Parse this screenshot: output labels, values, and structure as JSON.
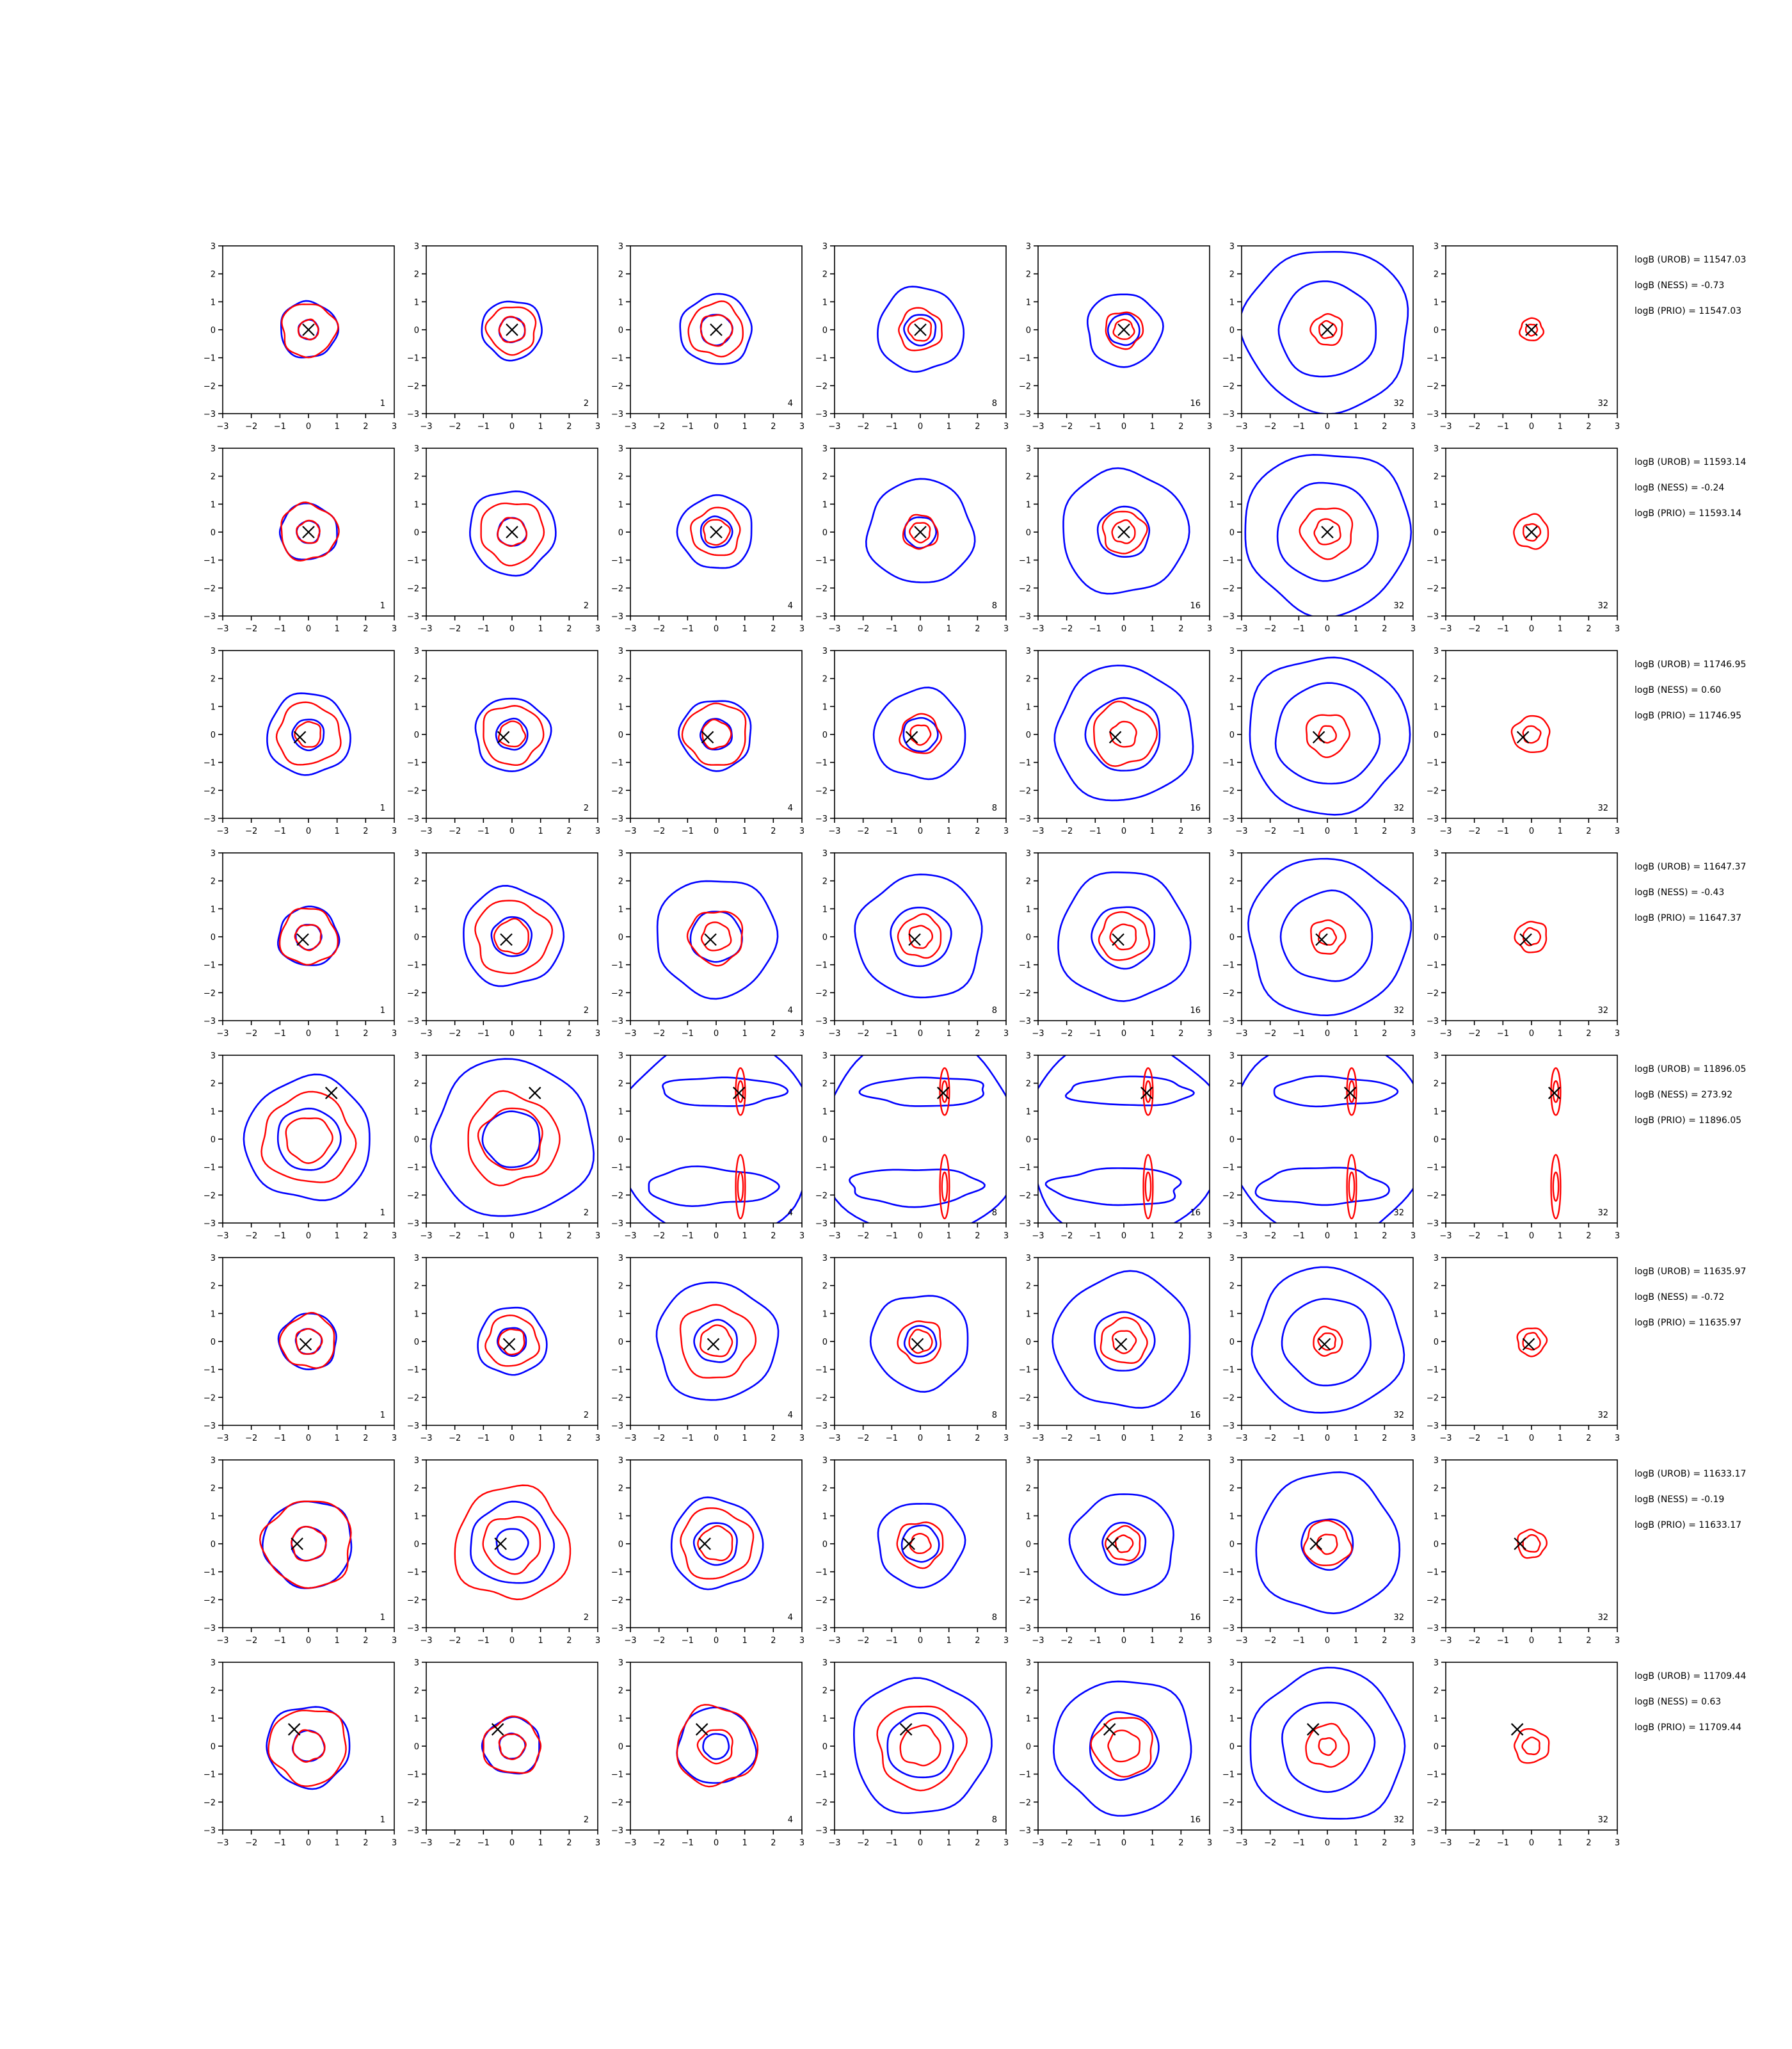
{
  "chart_data": {
    "type": "contour-grid",
    "rows": 8,
    "cols": 7,
    "xlim": [
      -3,
      3
    ],
    "ylim": [
      -3,
      3
    ],
    "ticks": [
      "−3",
      "−2",
      "−1",
      "0",
      "1",
      "2",
      "3"
    ],
    "tick_values": [
      -3,
      -2,
      -1,
      0,
      1,
      2,
      3
    ],
    "panel_labels": [
      "1",
      "2",
      "4",
      "8",
      "16",
      "32",
      "32"
    ],
    "colors": {
      "contour_outer": "#0000ff",
      "contour_inner": "#ff0000",
      "marker": "#000000",
      "axis": "#000000"
    },
    "grid": false,
    "rows_data": [
      {
        "marker": [
          0.0,
          0.0
        ],
        "annotations": [
          "logB (UROB) = 11547.03",
          "logB (NESS) = -0.73",
          "logB (PRIO) = 11547.03"
        ],
        "blue_radii": [
          [
            1.0,
            0.35
          ],
          [
            1.05,
            0.45
          ],
          [
            1.25,
            0.55
          ],
          [
            1.5,
            0.55
          ],
          [
            1.3,
            0.55
          ],
          [
            2.9,
            1.7
          ],
          [
            0,
            0
          ]
        ],
        "red_radii": [
          [
            0.95,
            0.35
          ],
          [
            0.85,
            0.45
          ],
          [
            0.95,
            0.55
          ],
          [
            0.75,
            0.4
          ],
          [
            0.65,
            0.35
          ],
          [
            0.55,
            0.3
          ],
          [
            0.4,
            0.2
          ]
        ]
      },
      {
        "marker": [
          0.0,
          0.0
        ],
        "annotations": [
          "logB (UROB) = 11593.14",
          "logB (NESS) = -0.24",
          "logB (PRIO) = 11593.14"
        ],
        "blue_radii": [
          [
            1.0,
            0.4
          ],
          [
            1.5,
            0.5
          ],
          [
            1.3,
            0.55
          ],
          [
            1.85,
            0.55
          ],
          [
            2.2,
            0.9
          ],
          [
            2.9,
            1.75
          ],
          [
            0,
            0
          ]
        ],
        "red_radii": [
          [
            1.0,
            0.4
          ],
          [
            1.1,
            0.5
          ],
          [
            0.85,
            0.45
          ],
          [
            0.6,
            0.35
          ],
          [
            0.75,
            0.4
          ],
          [
            0.9,
            0.45
          ],
          [
            0.6,
            0.3
          ]
        ]
      },
      {
        "marker": [
          -0.3,
          -0.1
        ],
        "annotations": [
          "logB (UROB) = 11746.95",
          "logB (NESS) = 0.60",
          "logB (PRIO) = 11746.95"
        ],
        "blue_radii": [
          [
            1.45,
            0.55
          ],
          [
            1.3,
            0.55
          ],
          [
            1.25,
            0.55
          ],
          [
            1.6,
            0.6
          ],
          [
            2.4,
            1.3
          ],
          [
            2.8,
            1.8
          ],
          [
            0,
            0
          ]
        ],
        "red_radii": [
          [
            1.1,
            0.45
          ],
          [
            1.05,
            0.45
          ],
          [
            1.1,
            0.5
          ],
          [
            0.7,
            0.35
          ],
          [
            1.1,
            0.45
          ],
          [
            0.75,
            0.3
          ],
          [
            0.65,
            0.3
          ]
        ]
      },
      {
        "marker": [
          -0.2,
          -0.1
        ],
        "annotations": [
          "logB (UROB) = 11647.37",
          "logB (NESS) = -0.43",
          "logB (PRIO) = 11647.37"
        ],
        "blue_radii": [
          [
            1.05,
            0.45
          ],
          [
            1.75,
            0.7
          ],
          [
            2.1,
            0.9
          ],
          [
            2.2,
            1.05
          ],
          [
            2.3,
            1.1
          ],
          [
            2.8,
            1.6
          ],
          [
            0,
            0
          ]
        ],
        "red_radii": [
          [
            1.0,
            0.45
          ],
          [
            1.3,
            0.6
          ],
          [
            0.95,
            0.5
          ],
          [
            0.75,
            0.4
          ],
          [
            0.85,
            0.45
          ],
          [
            0.6,
            0.3
          ],
          [
            0.55,
            0.3
          ]
        ]
      },
      {
        "marker": [
          0.8,
          1.65
        ],
        "annotations": [
          "logB (UROB) = 11896.05",
          "logB (NESS) = 273.92",
          "logB (PRIO) = 11896.05"
        ],
        "blue_radii": [
          [
            2.2,
            1.1
          ],
          [
            2.8,
            1.0
          ],
          [
            0,
            0
          ],
          [
            0,
            0
          ],
          [
            0,
            0
          ],
          [
            0,
            0
          ],
          [
            0,
            0
          ]
        ],
        "red_radii": [
          [
            1.6,
            0.8
          ],
          [
            1.6,
            1.1
          ],
          [
            0,
            0
          ],
          [
            0,
            0
          ],
          [
            0,
            0
          ],
          [
            0,
            0
          ],
          [
            0,
            0
          ]
        ]
      },
      {
        "marker": [
          -0.1,
          -0.1
        ],
        "annotations": [
          "logB (UROB) = 11635.97",
          "logB (NESS) = -0.72",
          "logB (PRIO) = 11635.97"
        ],
        "blue_radii": [
          [
            1.0,
            0.45
          ],
          [
            1.2,
            0.5
          ],
          [
            2.1,
            0.75
          ],
          [
            1.7,
            0.55
          ],
          [
            2.4,
            1.05
          ],
          [
            2.6,
            1.55
          ],
          [
            0,
            0
          ]
        ],
        "red_radii": [
          [
            0.95,
            0.45
          ],
          [
            0.9,
            0.45
          ],
          [
            1.3,
            0.55
          ],
          [
            0.75,
            0.4
          ],
          [
            0.8,
            0.4
          ],
          [
            0.5,
            0.3
          ],
          [
            0.5,
            0.3
          ]
        ]
      },
      {
        "marker": [
          -0.4,
          0.0
        ],
        "annotations": [
          "logB (UROB) = 11633.17",
          "logB (NESS) = -0.19",
          "logB (PRIO) = 11633.17"
        ],
        "blue_radii": [
          [
            1.55,
            0.6
          ],
          [
            1.45,
            0.55
          ],
          [
            1.6,
            0.75
          ],
          [
            1.5,
            0.65
          ],
          [
            1.8,
            0.75
          ],
          [
            2.5,
            0.9
          ],
          [
            0,
            0
          ]
        ],
        "red_radii": [
          [
            1.55,
            0.6
          ],
          [
            2.0,
            1.0
          ],
          [
            1.25,
            0.6
          ],
          [
            0.8,
            0.35
          ],
          [
            0.6,
            0.3
          ],
          [
            0.8,
            0.35
          ],
          [
            0.5,
            0.3
          ]
        ]
      },
      {
        "marker": [
          -0.5,
          0.6
        ],
        "annotations": [
          "logB (UROB) = 11709.44",
          "logB (NESS) = 0.63",
          "logB (PRIO) = 11709.44"
        ],
        "blue_radii": [
          [
            1.45,
            0.55
          ],
          [
            1.0,
            0.45
          ],
          [
            1.35,
            0.45
          ],
          [
            2.4,
            1.15
          ],
          [
            2.4,
            1.2
          ],
          [
            2.7,
            1.6
          ],
          [
            0,
            0
          ]
        ],
        "red_radii": [
          [
            1.35,
            0.55
          ],
          [
            1.0,
            0.45
          ],
          [
            1.4,
            0.6
          ],
          [
            1.5,
            0.7
          ],
          [
            1.05,
            0.55
          ],
          [
            0.75,
            0.3
          ],
          [
            0.6,
            0.3
          ]
        ]
      }
    ]
  }
}
